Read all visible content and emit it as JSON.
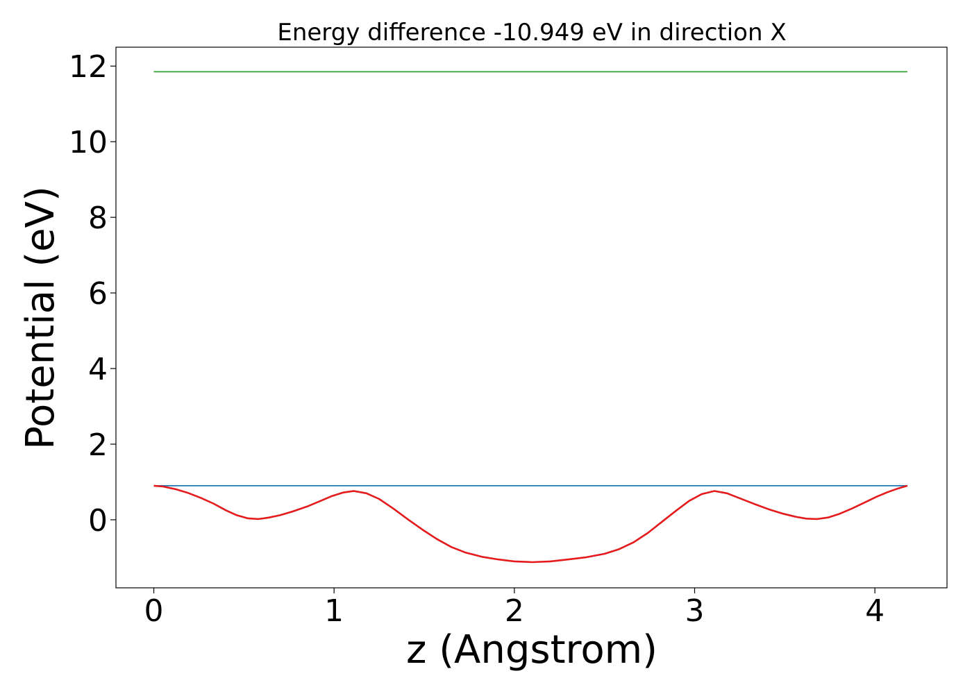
{
  "chart_data": {
    "type": "line",
    "title": "Energy difference -10.949 eV in direction X",
    "xlabel": "z (Angstrom)",
    "ylabel": "Potential (eV)",
    "xlim": [
      -0.21,
      4.4
    ],
    "ylim": [
      -1.8,
      12.5
    ],
    "grid": false,
    "xticks": [
      0,
      1,
      2,
      3,
      4
    ],
    "yticks": [
      0,
      2,
      4,
      6,
      8,
      10,
      12
    ],
    "xtick_labels": [
      "0",
      "1",
      "2",
      "3",
      "4"
    ],
    "ytick_labels": [
      "0",
      "2",
      "4",
      "6",
      "8",
      "10",
      "12"
    ],
    "series": [
      {
        "color": "#2ca02c",
        "x": [
          0,
          4.18
        ],
        "y": [
          11.85,
          11.85
        ]
      },
      {
        "color": "#1f77b4",
        "x": [
          0,
          4.18
        ],
        "y": [
          0.9,
          0.9
        ]
      },
      {
        "color": "#e41a1c",
        "x": [
          0,
          0.05,
          0.12,
          0.19,
          0.26,
          0.33,
          0.4,
          0.46,
          0.52,
          0.58,
          0.64,
          0.7,
          0.77,
          0.85,
          0.92,
          0.99,
          1.05,
          1.11,
          1.18,
          1.25,
          1.33,
          1.41,
          1.49,
          1.57,
          1.65,
          1.73,
          1.82,
          1.91,
          2.0,
          2.1,
          2.2,
          2.3,
          2.4,
          2.5,
          2.58,
          2.66,
          2.74,
          2.82,
          2.9,
          2.97,
          3.04,
          3.11,
          3.18,
          3.25,
          3.33,
          3.41,
          3.49,
          3.56,
          3.62,
          3.68,
          3.74,
          3.8,
          3.87,
          3.94,
          4.01,
          4.07,
          4.13,
          4.18
        ],
        "y": [
          0.9,
          0.88,
          0.81,
          0.71,
          0.58,
          0.43,
          0.25,
          0.12,
          0.04,
          0.02,
          0.06,
          0.12,
          0.22,
          0.35,
          0.49,
          0.63,
          0.72,
          0.76,
          0.7,
          0.55,
          0.29,
          0.01,
          -0.26,
          -0.51,
          -0.72,
          -0.87,
          -0.98,
          -1.05,
          -1.1,
          -1.12,
          -1.1,
          -1.05,
          -0.99,
          -0.9,
          -0.78,
          -0.6,
          -0.35,
          -0.05,
          0.25,
          0.5,
          0.68,
          0.76,
          0.7,
          0.57,
          0.42,
          0.28,
          0.16,
          0.08,
          0.03,
          0.02,
          0.06,
          0.15,
          0.29,
          0.45,
          0.61,
          0.73,
          0.83,
          0.9
        ]
      }
    ]
  }
}
